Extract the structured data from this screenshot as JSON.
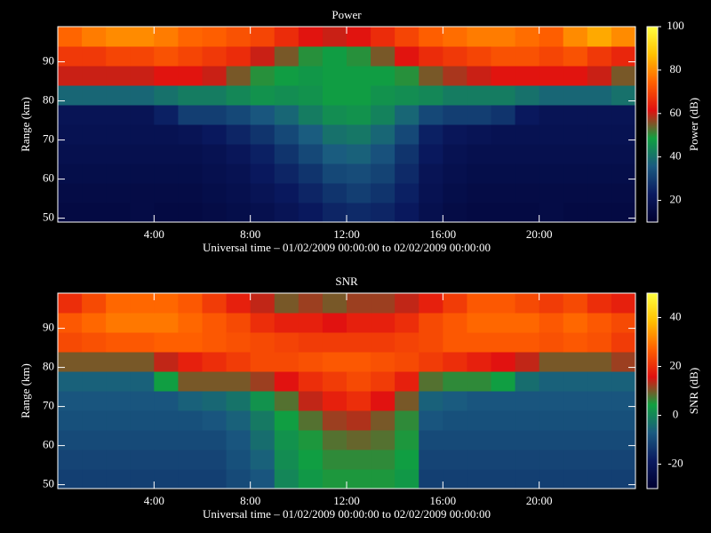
{
  "chart_data": [
    {
      "type": "heatmap",
      "title": "Power",
      "x_label": "Universal time – 01/02/2009 00:00:00 to 02/02/2009 00:00:00",
      "y_label": "Range (km)",
      "colorbar_label": "Power (dB)",
      "x": [
        0.5,
        1.5,
        2.5,
        3.5,
        4.5,
        5.5,
        6.5,
        7.5,
        8.5,
        9.5,
        10.5,
        11.5,
        12.5,
        13.5,
        14.5,
        15.5,
        16.5,
        17.5,
        18.5,
        19.5,
        20.5,
        21.5,
        22.5,
        23.5
      ],
      "y": [
        51.5,
        56.5,
        61.5,
        66.5,
        71.5,
        76.5,
        81.5,
        86.5,
        91.5,
        96.5
      ],
      "z": [
        [
          15,
          15,
          15,
          16,
          15,
          15,
          16,
          17,
          18,
          20,
          22,
          25,
          26,
          25,
          22,
          18,
          16,
          15,
          15,
          15,
          16,
          15,
          15,
          15
        ],
        [
          16,
          16,
          16,
          16,
          16,
          16,
          17,
          18,
          20,
          22,
          25,
          28,
          30,
          28,
          24,
          19,
          17,
          16,
          16,
          16,
          16,
          16,
          16,
          16
        ],
        [
          17,
          17,
          17,
          17,
          17,
          17,
          18,
          19,
          22,
          25,
          28,
          32,
          33,
          31,
          26,
          20,
          18,
          17,
          17,
          17,
          17,
          17,
          17,
          17
        ],
        [
          18,
          18,
          18,
          18,
          18,
          18,
          19,
          21,
          24,
          28,
          32,
          36,
          37,
          34,
          28,
          22,
          19,
          18,
          18,
          18,
          18,
          18,
          18,
          18
        ],
        [
          19,
          19,
          19,
          19,
          19,
          20,
          22,
          25,
          28,
          32,
          36,
          40,
          41,
          38,
          32,
          24,
          21,
          20,
          19,
          19,
          19,
          19,
          19,
          19
        ],
        [
          20,
          20,
          20,
          20,
          24,
          30,
          30,
          32,
          35,
          38,
          42,
          45,
          46,
          43,
          38,
          32,
          30,
          30,
          28,
          22,
          20,
          20,
          20,
          20
        ],
        [
          38,
          38,
          38,
          38,
          40,
          42,
          42,
          44,
          46,
          45,
          46,
          48,
          48,
          46,
          45,
          44,
          42,
          42,
          42,
          40,
          38,
          38,
          38,
          40
        ],
        [
          60,
          60,
          60,
          60,
          62,
          62,
          60,
          55,
          50,
          48,
          47,
          48,
          48,
          48,
          50,
          55,
          58,
          60,
          62,
          62,
          62,
          62,
          60,
          55
        ],
        [
          68,
          68,
          70,
          70,
          72,
          70,
          68,
          66,
          60,
          55,
          50,
          48,
          50,
          55,
          62,
          66,
          68,
          70,
          72,
          72,
          70,
          72,
          68,
          65
        ],
        [
          75,
          78,
          80,
          80,
          78,
          75,
          74,
          72,
          70,
          66,
          62,
          60,
          62,
          66,
          70,
          74,
          76,
          78,
          78,
          76,
          74,
          80,
          84,
          80
        ]
      ],
      "xlim": [
        0,
        24
      ],
      "xticks": [
        {
          "value": 4,
          "label": "4:00"
        },
        {
          "value": 8,
          "label": "8:00"
        },
        {
          "value": 12,
          "label": "12:00"
        },
        {
          "value": 16,
          "label": "16:00"
        },
        {
          "value": 20,
          "label": "20:00"
        }
      ],
      "ylim": [
        49,
        99
      ],
      "yticks": [
        50,
        60,
        70,
        80,
        90
      ],
      "zlim": [
        10,
        100
      ],
      "zticks": [
        20,
        40,
        60,
        80,
        100
      ],
      "colormap": [
        "#000030",
        "#0a1a60",
        "#1a5a80",
        "#10a040",
        "#e01010",
        "#ff6000",
        "#ffc000",
        "#ffff40"
      ]
    },
    {
      "type": "heatmap",
      "title": "SNR",
      "x_label": "Universal time – 01/02/2009 00:00:00 to 02/02/2009 00:00:00",
      "y_label": "Range (km)",
      "colorbar_label": "SNR (dB)",
      "x": [
        0.5,
        1.5,
        2.5,
        3.5,
        4.5,
        5.5,
        6.5,
        7.5,
        8.5,
        9.5,
        10.5,
        11.5,
        12.5,
        13.5,
        14.5,
        15.5,
        16.5,
        17.5,
        18.5,
        19.5,
        20.5,
        21.5,
        22.5,
        23.5
      ],
      "y": [
        51.5,
        56.5,
        61.5,
        66.5,
        71.5,
        76.5,
        81.5,
        86.5,
        91.5,
        96.5
      ],
      "z": [
        [
          -12,
          -12,
          -12,
          -12,
          -12,
          -12,
          -12,
          -10,
          -8,
          0,
          3,
          5,
          5,
          5,
          3,
          -12,
          -12,
          -12,
          -12,
          -12,
          -12,
          -12,
          -12,
          -12
        ],
        [
          -11,
          -11,
          -11,
          -11,
          -11,
          -11,
          -11,
          -9,
          -6,
          1,
          4,
          6,
          6,
          6,
          4,
          -11,
          -11,
          -11,
          -11,
          -11,
          -11,
          -11,
          -11,
          -11
        ],
        [
          -10,
          -10,
          -10,
          -10,
          -10,
          -10,
          -10,
          -8,
          -4,
          2,
          5,
          8,
          9,
          8,
          5,
          -10,
          -10,
          -10,
          -10,
          -10,
          -10,
          -10,
          -10,
          -10
        ],
        [
          -9,
          -9,
          -9,
          -9,
          -9,
          -9,
          -8,
          -6,
          -2,
          4,
          8,
          12,
          13,
          10,
          6,
          -8,
          -9,
          -9,
          -9,
          -9,
          -9,
          -9,
          -9,
          -9
        ],
        [
          -8,
          -8,
          -8,
          -8,
          -8,
          -6,
          -5,
          -3,
          2,
          8,
          14,
          18,
          20,
          16,
          10,
          -6,
          -7,
          -8,
          -8,
          -8,
          -8,
          -8,
          -8,
          -8
        ],
        [
          -6,
          -6,
          -6,
          -6,
          4,
          10,
          10,
          10,
          12,
          16,
          20,
          22,
          24,
          22,
          18,
          8,
          6,
          6,
          4,
          -4,
          -6,
          -6,
          -6,
          -6
        ],
        [
          10,
          10,
          10,
          10,
          14,
          18,
          20,
          22,
          24,
          24,
          25,
          26,
          26,
          25,
          24,
          22,
          20,
          18,
          16,
          14,
          10,
          10,
          10,
          12
        ],
        [
          24,
          25,
          26,
          26,
          27,
          27,
          26,
          25,
          24,
          23,
          22,
          22,
          22,
          22,
          23,
          24,
          26,
          26,
          26,
          26,
          25,
          26,
          25,
          22
        ],
        [
          26,
          28,
          30,
          30,
          30,
          28,
          26,
          24,
          20,
          18,
          18,
          16,
          18,
          18,
          20,
          24,
          26,
          28,
          28,
          28,
          26,
          28,
          26,
          24
        ],
        [
          20,
          24,
          28,
          28,
          28,
          26,
          22,
          18,
          14,
          10,
          12,
          10,
          12,
          12,
          14,
          18,
          22,
          26,
          26,
          24,
          22,
          24,
          20,
          18
        ]
      ],
      "xlim": [
        0,
        24
      ],
      "xticks": [
        {
          "value": 4,
          "label": "4:00"
        },
        {
          "value": 8,
          "label": "8:00"
        },
        {
          "value": 12,
          "label": "12:00"
        },
        {
          "value": 16,
          "label": "16:00"
        },
        {
          "value": 20,
          "label": "20:00"
        }
      ],
      "ylim": [
        49,
        99
      ],
      "yticks": [
        50,
        60,
        70,
        80,
        90
      ],
      "zlim": [
        -30,
        50
      ],
      "zticks": [
        -20,
        0,
        20,
        40
      ],
      "colormap": [
        "#000030",
        "#0a1a60",
        "#1a5a80",
        "#10a040",
        "#e01010",
        "#ff6000",
        "#ffc000",
        "#ffff40"
      ]
    }
  ]
}
